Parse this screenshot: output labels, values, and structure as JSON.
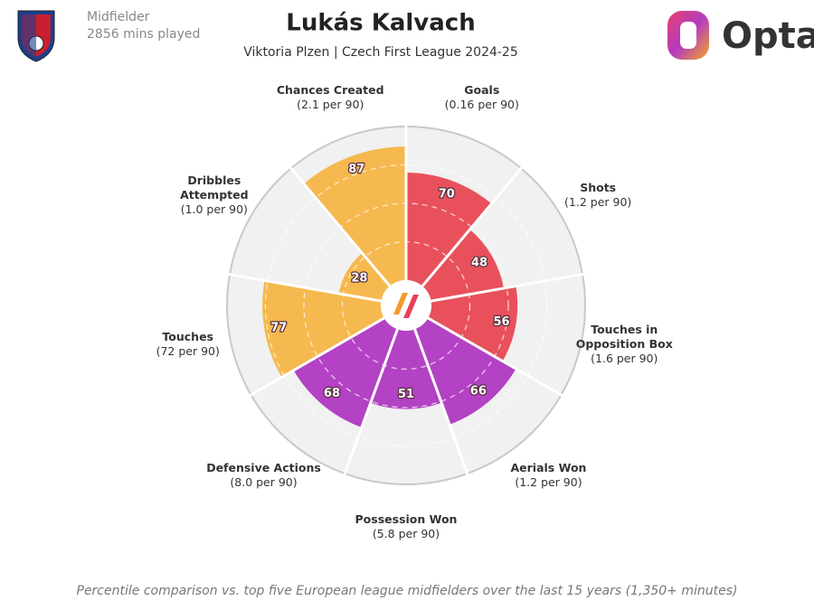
{
  "chart_data": {
    "type": "pizza",
    "title": "Lukás Kalvach",
    "subtitle": "Viktoria Plzen | Czech First League 2024-25",
    "position": "Midfielder",
    "minutes": "2856 mins played",
    "brand": "Opta",
    "footnote": "Percentile comparison vs. top five European league midfielders over the last 15 years (1,350+ minutes)",
    "categories": [
      "Goals",
      "Shots",
      "Touches in Opposition Box",
      "Aerials Won",
      "Possession Won",
      "Defensive Actions",
      "Touches",
      "Dribbles Attempted",
      "Chances Created"
    ],
    "stats": [
      "(0.16 per 90)",
      "(1.2 per 90)",
      "(1.6 per 90)",
      "(1.2 per 90)",
      "(5.8 per 90)",
      "(8.0 per 90)",
      "(72 per 90)",
      "(1.0 per 90)",
      "(2.1 per 90)"
    ],
    "values": [
      70,
      48,
      56,
      66,
      51,
      68,
      77,
      28,
      87
    ],
    "colors": [
      "#e8515c",
      "#e8515c",
      "#e8515c",
      "#b342c4",
      "#b342c4",
      "#b342c4",
      "#f6b94f",
      "#f6b94f",
      "#f6b94f"
    ],
    "rlim": [
      0,
      100
    ],
    "rticks": [
      25,
      50,
      75
    ]
  }
}
